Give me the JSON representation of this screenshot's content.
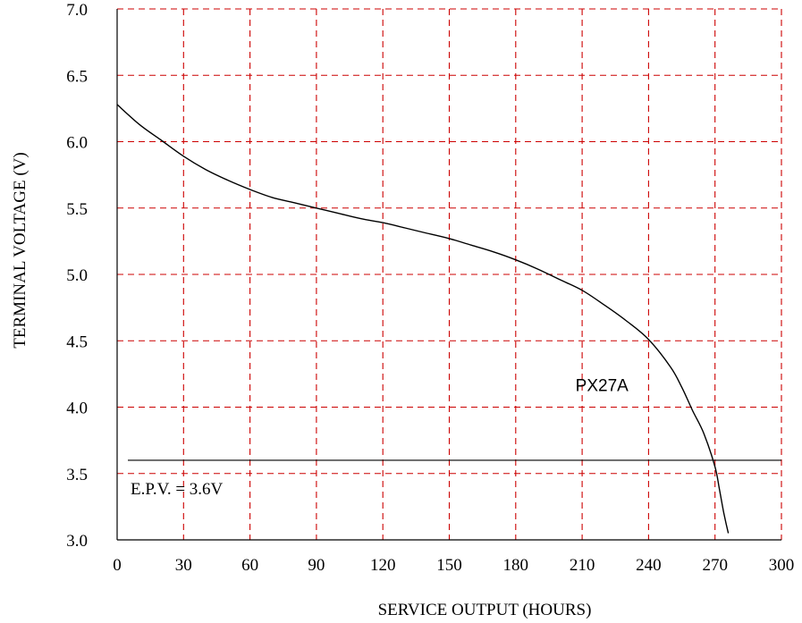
{
  "chart_data": {
    "type": "line",
    "xlabel": "SERVICE OUTPUT (HOURS)",
    "ylabel": "TERMINAL VOLTAGE (V)",
    "xlim": [
      0,
      300
    ],
    "ylim": [
      3.0,
      7.0
    ],
    "x_ticks": [
      0,
      30,
      60,
      90,
      120,
      150,
      180,
      210,
      240,
      270,
      300
    ],
    "y_ticks": [
      3.0,
      3.5,
      4.0,
      4.5,
      5.0,
      5.5,
      6.0,
      6.5,
      7.0
    ],
    "x_tick_labels": [
      "0",
      "30",
      "60",
      "90",
      "120",
      "150",
      "180",
      "210",
      "240",
      "270",
      "300"
    ],
    "y_tick_labels": [
      "3.0",
      "3.5",
      "4.0",
      "4.5",
      "5.0",
      "5.5",
      "6.0",
      "6.5",
      "7.0"
    ],
    "grid": true,
    "grid_color": "#cc0000",
    "grid_style": "dashed",
    "line_color": "#000000",
    "series": [
      {
        "name": "PX27A",
        "x": [
          0,
          10,
          20,
          30,
          40,
          50,
          60,
          70,
          80,
          90,
          100,
          110,
          120,
          130,
          140,
          150,
          160,
          170,
          180,
          190,
          200,
          210,
          220,
          230,
          240,
          250,
          255,
          260,
          265,
          270,
          272,
          274,
          276
        ],
        "y": [
          6.28,
          6.13,
          6.01,
          5.89,
          5.79,
          5.71,
          5.64,
          5.58,
          5.54,
          5.5,
          5.46,
          5.42,
          5.39,
          5.35,
          5.31,
          5.27,
          5.22,
          5.17,
          5.11,
          5.04,
          4.96,
          4.88,
          4.77,
          4.65,
          4.51,
          4.3,
          4.15,
          3.97,
          3.8,
          3.55,
          3.38,
          3.2,
          3.05
        ]
      }
    ],
    "reference_lines": [
      {
        "label": "E.P.V. = 3.6V",
        "y": 3.6
      }
    ],
    "annotations": [
      {
        "text": "PX27A"
      }
    ]
  }
}
